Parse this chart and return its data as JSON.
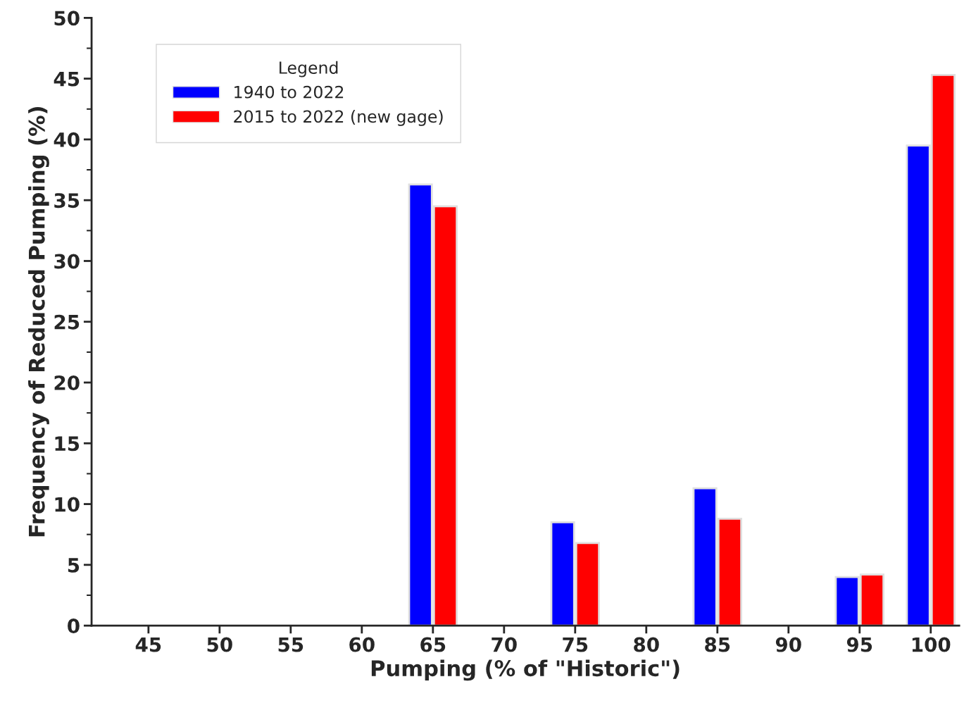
{
  "chart_data": {
    "type": "bar",
    "xlabel": "Pumping (% of \"Historic\")",
    "ylabel": "Frequency of Reduced Pumping (%)",
    "categories": [
      "45",
      "50",
      "55",
      "60",
      "65",
      "70",
      "75",
      "80",
      "85",
      "90",
      "95",
      "100"
    ],
    "series": [
      {
        "name": "1940 to 2022",
        "color": "#0000ff",
        "values": [
          null,
          null,
          null,
          null,
          36.3,
          null,
          8.5,
          null,
          11.3,
          null,
          4.0,
          39.5
        ]
      },
      {
        "name": "2015 to 2022 (new gage)",
        "color": "#ff0000",
        "values": [
          null,
          null,
          null,
          null,
          34.5,
          null,
          6.8,
          null,
          8.8,
          null,
          4.2,
          45.3
        ]
      }
    ],
    "legend_title": "Legend",
    "legend": "top left",
    "grid": false,
    "ylim": [
      0,
      50
    ],
    "yticks": [
      0,
      5,
      10,
      15,
      20,
      25,
      30,
      35,
      40,
      45,
      50
    ]
  }
}
